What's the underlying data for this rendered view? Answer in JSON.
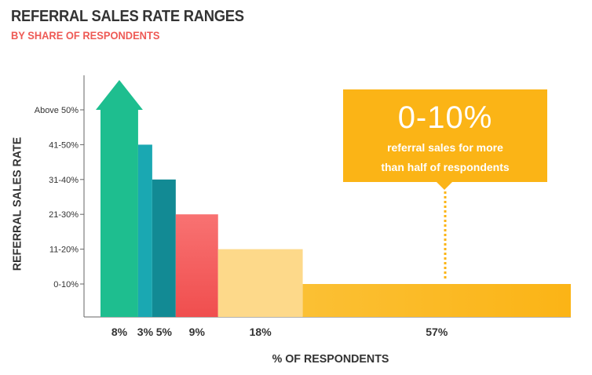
{
  "chart_data": {
    "type": "bar",
    "title": "REFERRAL SALES RATE RANGES",
    "subtitle": "BY SHARE OF RESPONDENTS",
    "xlabel": "% OF RESPONDENTS",
    "ylabel": "REFERRAL SALES RATE",
    "categories": [
      "0-10%",
      "11-20%",
      "21-30%",
      "31-40%",
      "41-50%",
      "Above 50%"
    ],
    "bars": [
      {
        "range": "Above 50%",
        "share": 8,
        "label": "8%",
        "color": "#1ebe8f",
        "arrow": true
      },
      {
        "range": "41-50%",
        "share": 3,
        "label": "3%",
        "color": "#1aa8b2"
      },
      {
        "range": "31-40%",
        "share": 5,
        "label": "5%",
        "color": "#128a94"
      },
      {
        "range": "21-30%",
        "share": 9,
        "label": "9%",
        "color": "#f45e5e"
      },
      {
        "range": "11-20%",
        "share": 18,
        "label": "18%",
        "color": "#fdd98a"
      },
      {
        "range": "0-10%",
        "share": 57,
        "label": "57%",
        "color": "#fbb824"
      }
    ],
    "xlim": [
      0,
      100
    ],
    "annotation": {
      "value": "0-10%",
      "text_line1": "referral sales for more",
      "text_line2": "than half of respondents"
    }
  },
  "colors": {
    "axis": "#666666",
    "callout": "#fbb416",
    "title": "#333333",
    "subtitle": "#ee5a55"
  }
}
